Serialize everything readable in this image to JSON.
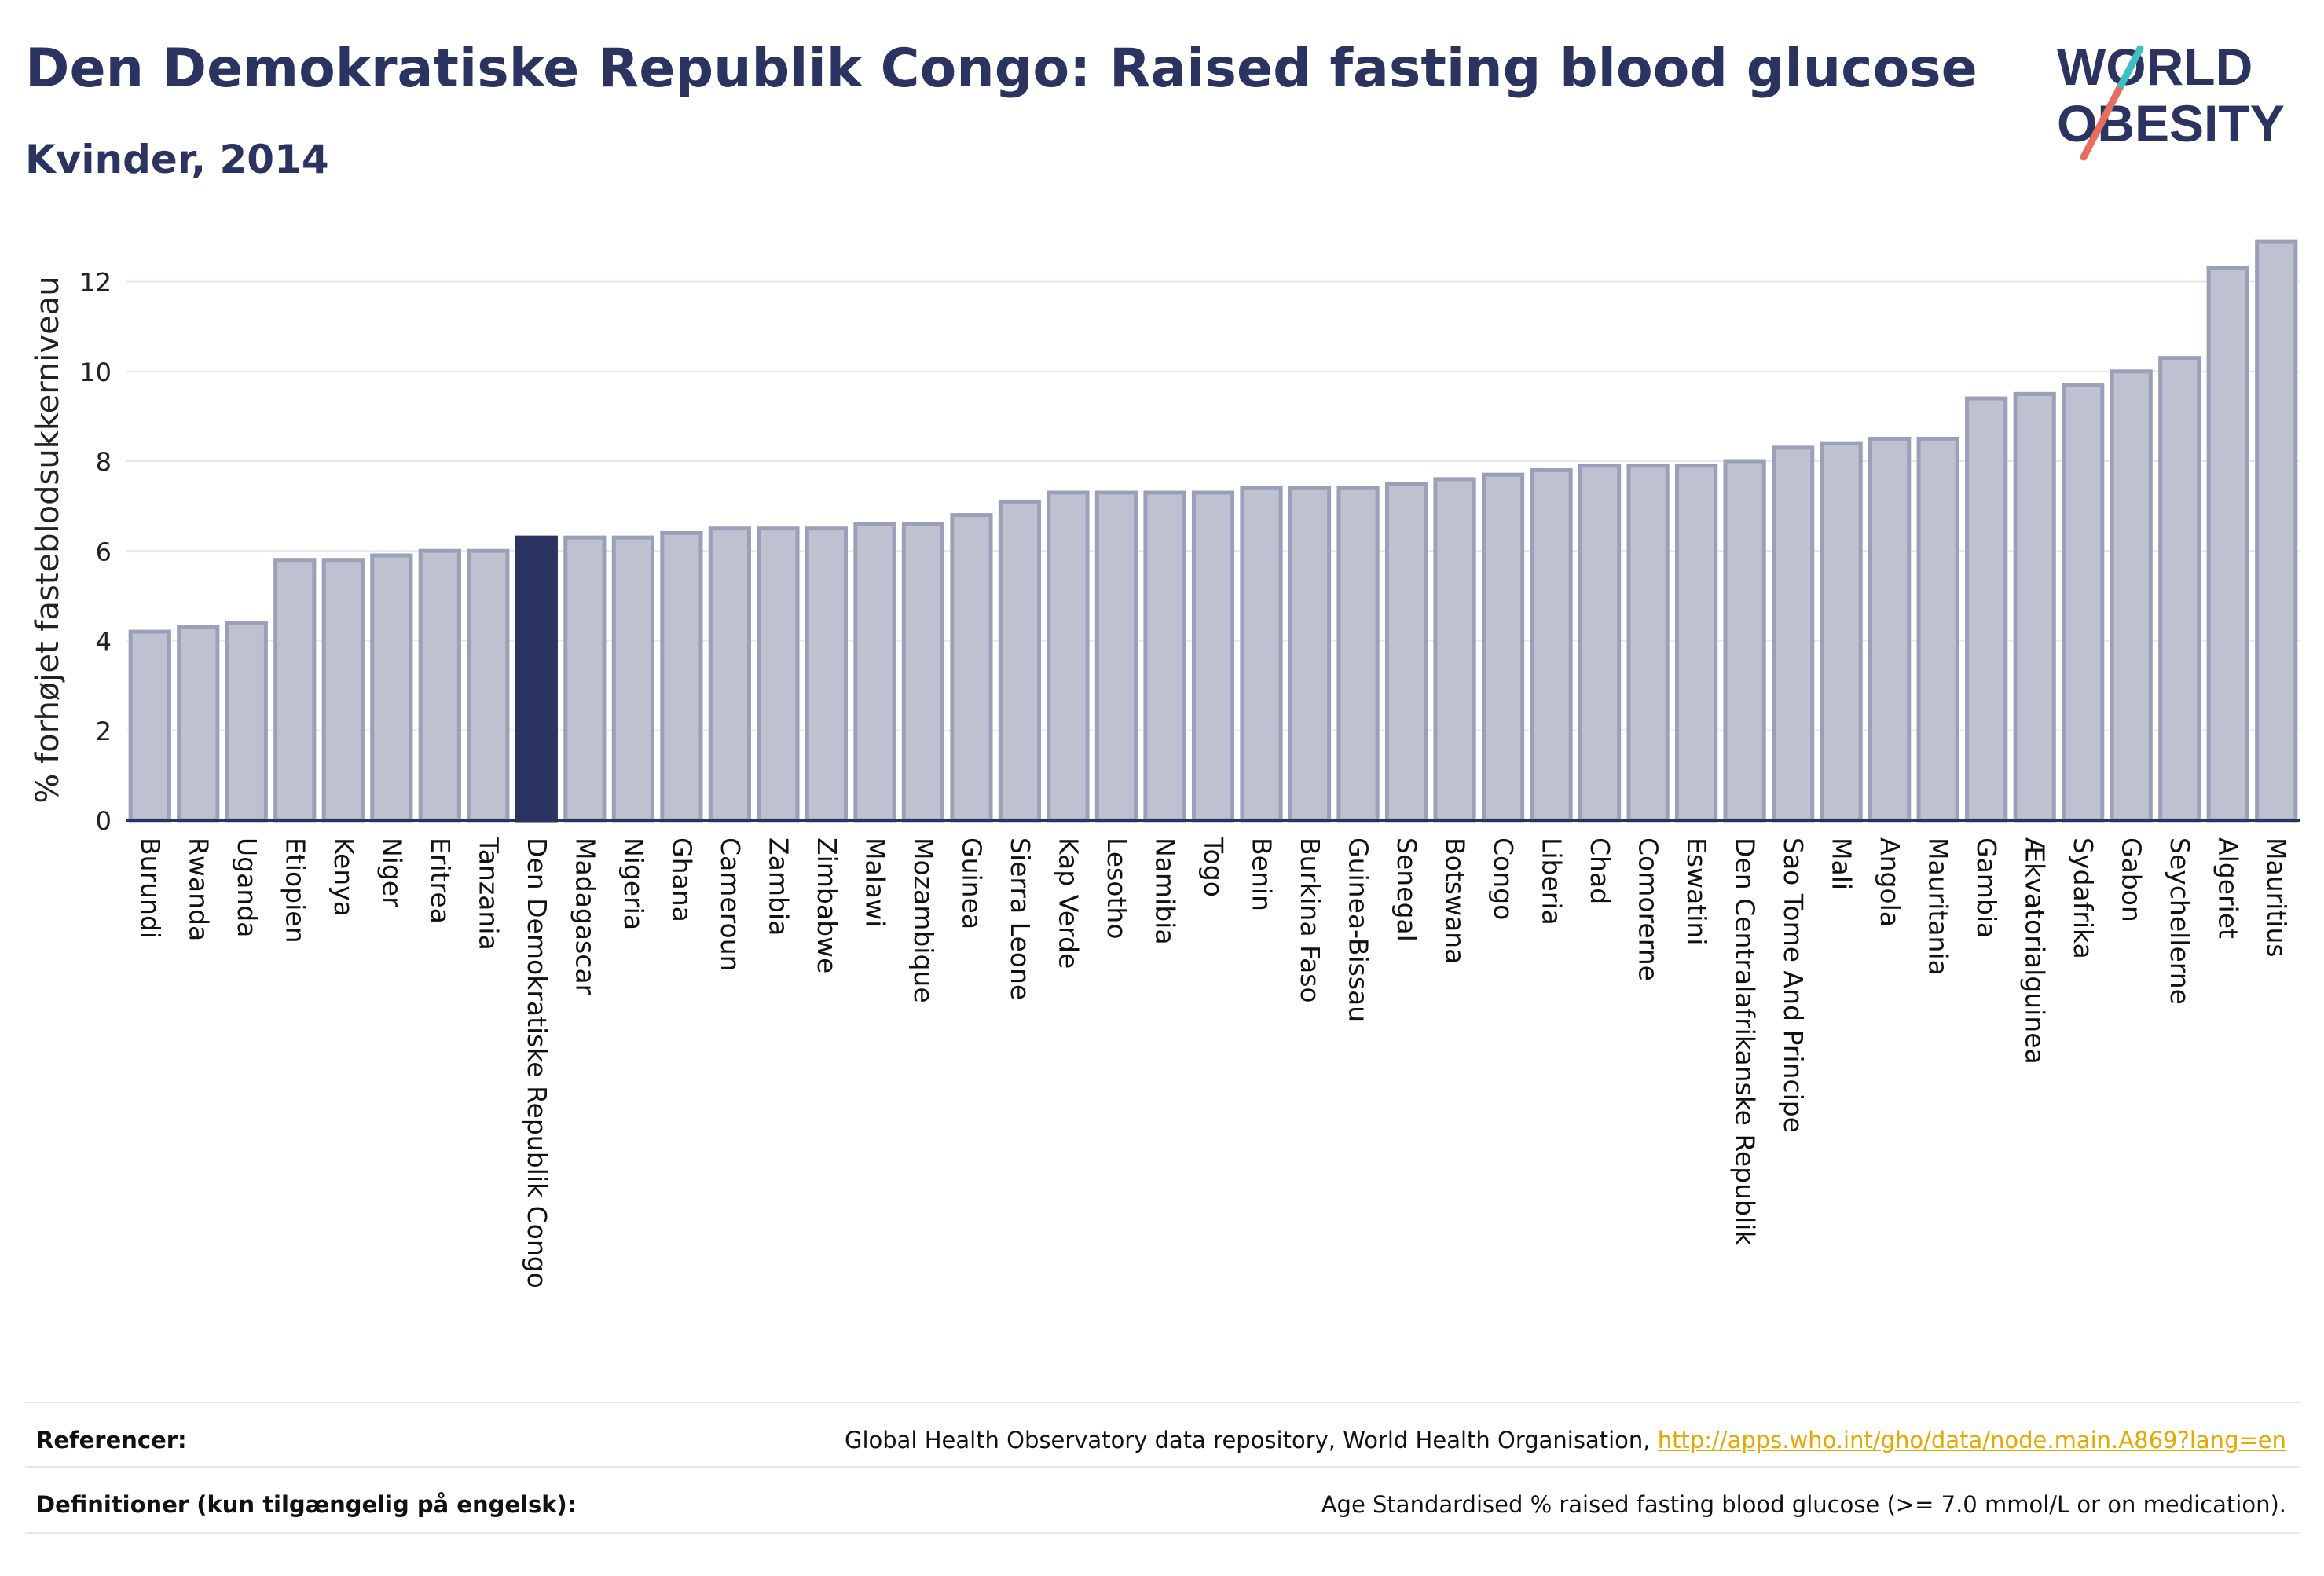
{
  "header": {
    "title": "Den Demokratiske Republik Congo: Raised fasting blood glucose",
    "subtitle": "Kvinder, 2014"
  },
  "logo": {
    "line1": "WORLD",
    "line2": "OBESITY",
    "slash_colors": [
      "#e56f5f",
      "#3fc0c0"
    ],
    "text_color": "#2b3360"
  },
  "colors": {
    "bar_fill": "#bec1cf",
    "bar_stroke": "#9aa0b8",
    "highlight": "#2b3360",
    "grid": "#e6e7ee",
    "axis": "#2b3360"
  },
  "chart_data": {
    "type": "bar",
    "title": "",
    "xlabel": "",
    "ylabel": "% forhøjet fasteblodsukkerniveau",
    "ylim": [
      0,
      13.2
    ],
    "yticks": [
      0,
      2,
      4,
      6,
      8,
      10,
      12
    ],
    "grid": true,
    "highlight_category": "Den Demokratiske Republik Congo",
    "categories": [
      "Burundi",
      "Rwanda",
      "Uganda",
      "Etiopien",
      "Kenya",
      "Niger",
      "Eritrea",
      "Tanzania",
      "Den Demokratiske Republik Congo",
      "Madagascar",
      "Nigeria",
      "Ghana",
      "Cameroun",
      "Zambia",
      "Zimbabwe",
      "Malawi",
      "Mozambique",
      "Guinea",
      "Sierra Leone",
      "Kap Verde",
      "Lesotho",
      "Namibia",
      "Togo",
      "Benin",
      "Burkina Faso",
      "Guinea-Bissau",
      "Senegal",
      "Botswana",
      "Congo",
      "Liberia",
      "Chad",
      "Comorerne",
      "Eswatini",
      "Den Centralafrikanske Republik",
      "Sao Tome And Principe",
      "Mali",
      "Angola",
      "Mauritania",
      "Gambia",
      "Ækvatorialguinea",
      "Sydafrika",
      "Gabon",
      "Seychellerne",
      "Algeriet",
      "Mauritius"
    ],
    "values": [
      4.2,
      4.3,
      4.4,
      5.8,
      5.8,
      5.9,
      6.0,
      6.0,
      6.3,
      6.3,
      6.3,
      6.4,
      6.5,
      6.5,
      6.5,
      6.6,
      6.6,
      6.8,
      7.1,
      7.3,
      7.3,
      7.3,
      7.3,
      7.4,
      7.4,
      7.4,
      7.5,
      7.6,
      7.7,
      7.8,
      7.9,
      7.9,
      7.9,
      8.0,
      8.3,
      8.4,
      8.5,
      8.5,
      9.4,
      9.5,
      9.7,
      10.0,
      10.3,
      12.3,
      12.9
    ]
  },
  "references": {
    "label": "Referencer:",
    "text": "Global Health Observatory data repository, World Health Organisation, ",
    "link": "http://apps.who.int/gho/data/node.main.A869?lang=en"
  },
  "definitions": {
    "label": "Definitioner (kun tilgængelig på engelsk):",
    "text": "Age Standardised % raised fasting blood glucose (>= 7.0 mmol/L or on medication)."
  }
}
